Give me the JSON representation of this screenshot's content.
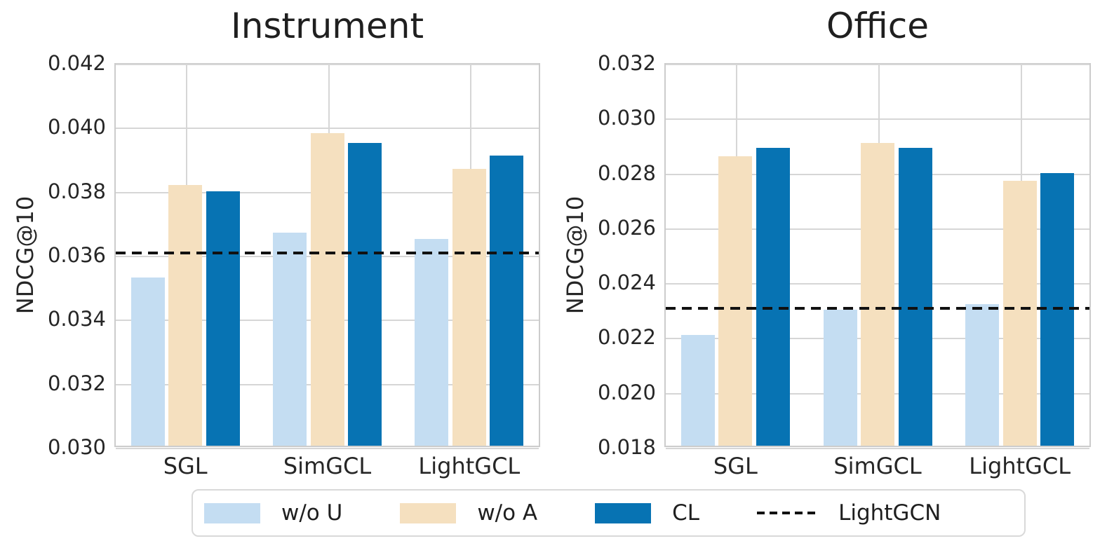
{
  "figure": {
    "background": "#ffffff"
  },
  "legend": {
    "items": [
      {
        "label": "w/o U",
        "type": "swatch",
        "color": "#c4ddf2"
      },
      {
        "label": "w/o A",
        "type": "swatch",
        "color": "#f5e0bf"
      },
      {
        "label": "CL",
        "type": "swatch",
        "color": "#0773b3"
      },
      {
        "label": "LightGCN",
        "type": "dashed-line",
        "color": "#111111"
      }
    ]
  },
  "chart_data": [
    {
      "type": "bar",
      "title": "Instrument",
      "xlabel": "",
      "ylabel": "NDCG@10",
      "categories": [
        "SGL",
        "SimGCL",
        "LightGCL"
      ],
      "series": [
        {
          "name": "w/o U",
          "color": "#c4ddf2",
          "values": [
            0.0353,
            0.0367,
            0.0365
          ]
        },
        {
          "name": "w/o A",
          "color": "#f5e0bf",
          "values": [
            0.0382,
            0.0398,
            0.0387
          ]
        },
        {
          "name": "CL",
          "color": "#0773b3",
          "values": [
            0.038,
            0.0395,
            0.0391
          ]
        }
      ],
      "baseline": {
        "name": "LightGCN",
        "value": 0.0361,
        "style": "dashed",
        "color": "#111111"
      },
      "ylim": [
        0.03,
        0.042
      ],
      "yticks": [
        0.03,
        0.032,
        0.034,
        0.036,
        0.038,
        0.04,
        0.042
      ],
      "ytick_decimals": 3,
      "grid": true,
      "legend_position": "bottom-figure"
    },
    {
      "type": "bar",
      "title": "Office",
      "xlabel": "",
      "ylabel": "NDCG@10",
      "categories": [
        "SGL",
        "SimGCL",
        "LightGCL"
      ],
      "series": [
        {
          "name": "w/o U",
          "color": "#c4ddf2",
          "values": [
            0.0221,
            0.023,
            0.0232
          ]
        },
        {
          "name": "w/o A",
          "color": "#f5e0bf",
          "values": [
            0.0286,
            0.0291,
            0.0277
          ]
        },
        {
          "name": "CL",
          "color": "#0773b3",
          "values": [
            0.0289,
            0.0289,
            0.028
          ]
        }
      ],
      "baseline": {
        "name": "LightGCN",
        "value": 0.0231,
        "style": "dashed",
        "color": "#111111"
      },
      "ylim": [
        0.018,
        0.032
      ],
      "yticks": [
        0.018,
        0.02,
        0.022,
        0.024,
        0.026,
        0.028,
        0.03,
        0.032
      ],
      "ytick_decimals": 3,
      "grid": true,
      "legend_position": "bottom-figure"
    }
  ]
}
